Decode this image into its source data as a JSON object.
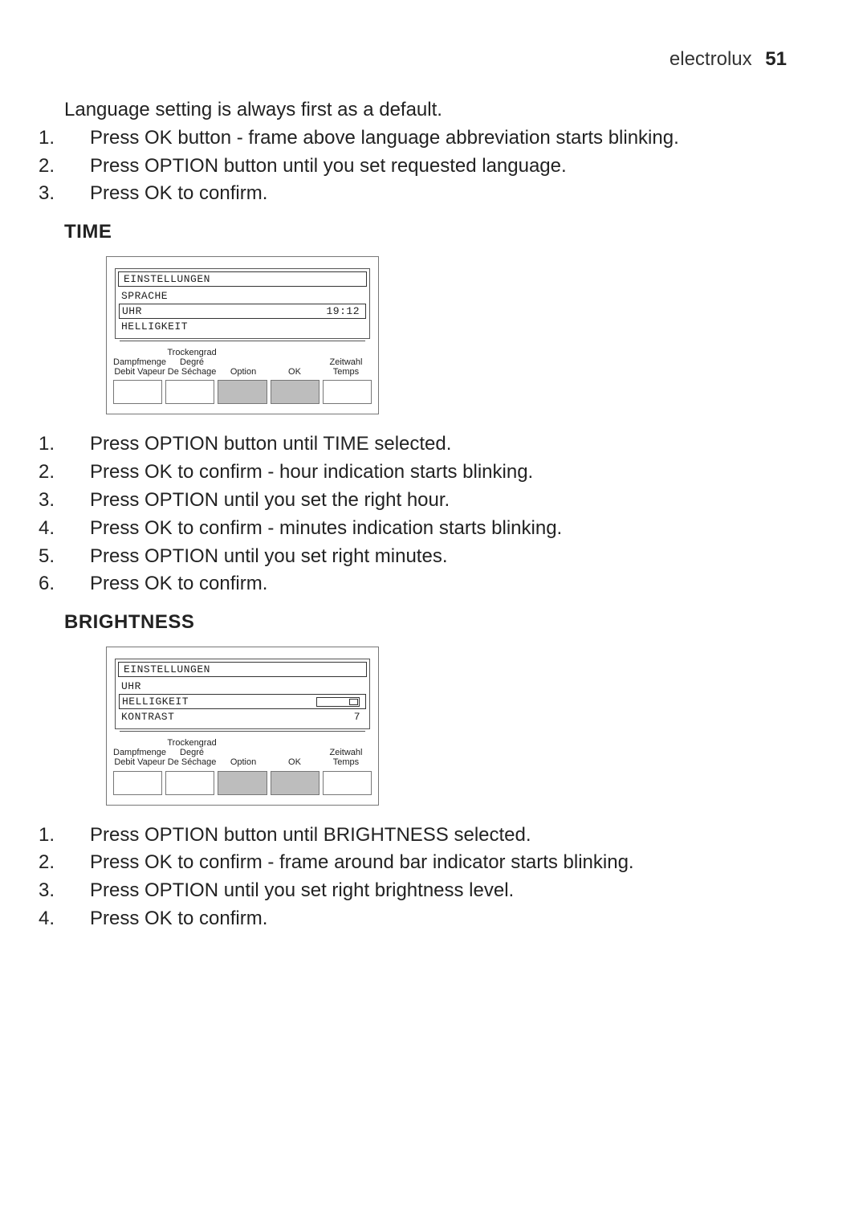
{
  "header": {
    "brand": "electrolux",
    "page_number": "51"
  },
  "intro": {
    "lead": "Language setting is always first as a default.",
    "steps": [
      "Press OK button - frame above language abbreviation starts blinking.",
      "Press OPTION button until you set requested language.",
      "Press OK to confirm."
    ]
  },
  "time": {
    "heading": "TIME",
    "panel": {
      "lcd_title": "EINSTELLUNGEN",
      "rows": [
        {
          "label": "SPRACHE",
          "value": "",
          "boxed": false
        },
        {
          "label": "UHR",
          "value": "19:12",
          "boxed": true
        },
        {
          "label": "HELLIGKEIT",
          "value": "",
          "boxed": false
        }
      ],
      "button_labels": [
        {
          "l1": "",
          "l2": "Dampfmenge",
          "l3": "Debit Vapeur"
        },
        {
          "l1": "Trockengrad",
          "l2": "Degré",
          "l3": "De Séchage"
        },
        {
          "l1": "",
          "l2": "Option",
          "l3": ""
        },
        {
          "l1": "",
          "l2": "OK",
          "l3": ""
        },
        {
          "l1": "",
          "l2": "Zeitwahl",
          "l3": "Temps"
        }
      ],
      "buttons_gray": [
        false,
        false,
        true,
        true,
        false
      ]
    },
    "steps": [
      "Press OPTION button until TIME selected.",
      "Press OK to confirm - hour indication starts blinking.",
      "Press OPTION until you set the right hour.",
      "Press OK to confirm - minutes indication starts blinking.",
      "Press OPTION until you set right minutes.",
      "Press OK to confirm."
    ]
  },
  "brightness": {
    "heading": "BRIGHTNESS",
    "panel": {
      "lcd_title": "EINSTELLUNGEN",
      "rows": [
        {
          "label": "UHR",
          "value": "",
          "boxed": false
        },
        {
          "label": "HELLIGKEIT",
          "value_type": "bar",
          "bar_level": 7,
          "boxed": true
        },
        {
          "label": "KONTRAST",
          "value": "7",
          "boxed": false
        }
      ],
      "button_labels": [
        {
          "l1": "",
          "l2": "Dampfmenge",
          "l3": "Debit Vapeur"
        },
        {
          "l1": "Trockengrad",
          "l2": "Degré",
          "l3": "De Séchage"
        },
        {
          "l1": "",
          "l2": "Option",
          "l3": ""
        },
        {
          "l1": "",
          "l2": "OK",
          "l3": ""
        },
        {
          "l1": "",
          "l2": "Zeitwahl",
          "l3": "Temps"
        }
      ],
      "buttons_gray": [
        false,
        false,
        true,
        true,
        false
      ]
    },
    "steps": [
      "Press OPTION button until BRIGHTNESS selected.",
      "Press OK to confirm - frame around bar indicator starts blinking.",
      "Press OPTION until you set right brightness level.",
      "Press OK to confirm."
    ]
  },
  "colors": {
    "text": "#222222",
    "panel_border": "#777777",
    "lcd_border": "#555555",
    "gray_button": "#bdbdbd",
    "background": "#ffffff"
  }
}
